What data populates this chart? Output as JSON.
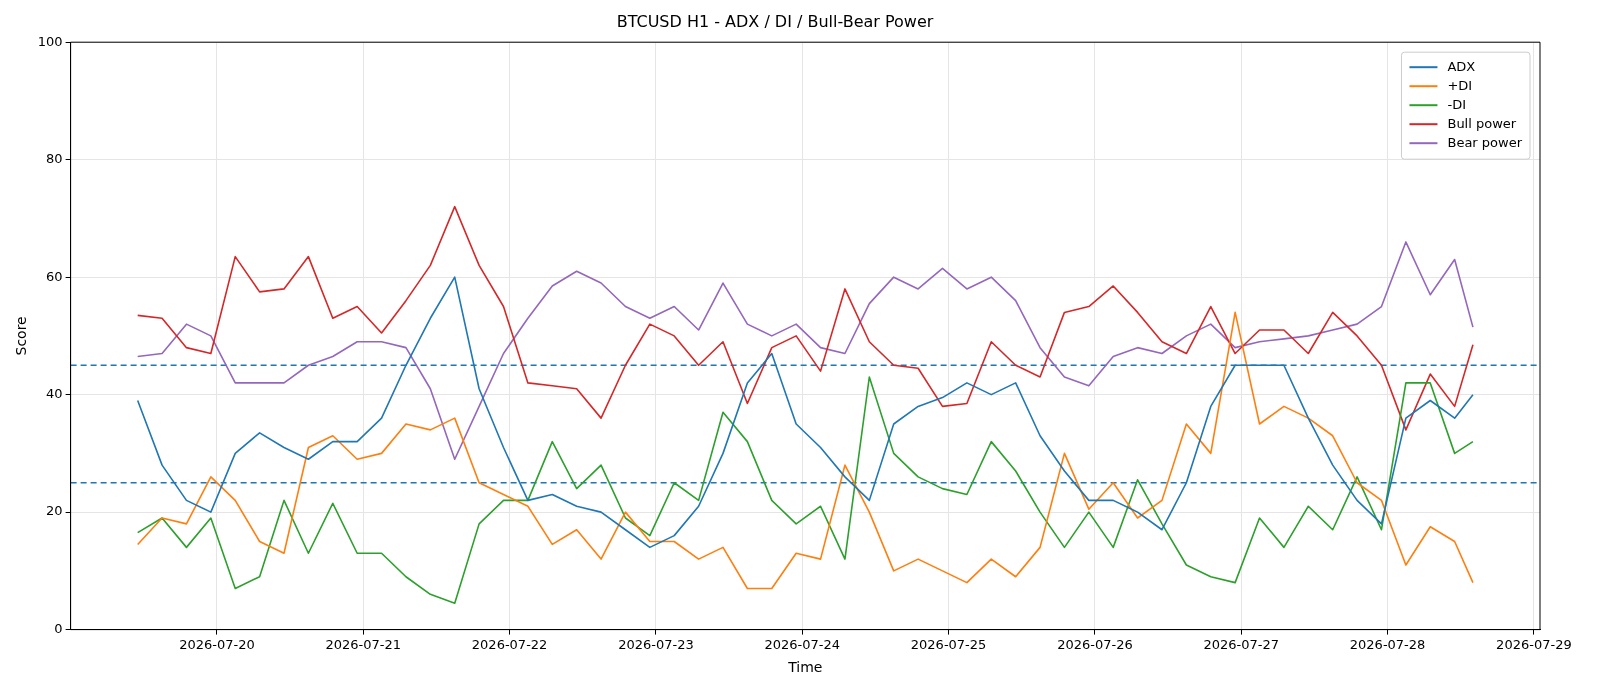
{
  "chart_data": {
    "type": "line",
    "title": "BTCUSD H1 - ADX / DI / Bull-Bear Power",
    "xlabel": "Time",
    "ylabel": "Score",
    "x": [
      "2026-07-19T11:00",
      "2026-07-19T15:00",
      "2026-07-19T19:00",
      "2026-07-19T23:00",
      "2026-07-20T03:00",
      "2026-07-20T07:00",
      "2026-07-20T11:00",
      "2026-07-20T15:00",
      "2026-07-20T19:00",
      "2026-07-20T23:00",
      "2026-07-21T03:00",
      "2026-07-21T07:00",
      "2026-07-21T11:00",
      "2026-07-21T15:00",
      "2026-07-21T19:00",
      "2026-07-21T23:00",
      "2026-07-22T03:00",
      "2026-07-22T07:00",
      "2026-07-22T11:00",
      "2026-07-22T15:00",
      "2026-07-22T19:00",
      "2026-07-22T23:00",
      "2026-07-23T03:00",
      "2026-07-23T07:00",
      "2026-07-23T11:00",
      "2026-07-23T15:00",
      "2026-07-23T19:00",
      "2026-07-23T23:00",
      "2026-07-24T03:00",
      "2026-07-24T07:00",
      "2026-07-24T11:00",
      "2026-07-24T15:00",
      "2026-07-24T19:00",
      "2026-07-24T23:00",
      "2026-07-25T03:00",
      "2026-07-25T07:00",
      "2026-07-25T11:00",
      "2026-07-25T15:00",
      "2026-07-25T19:00",
      "2026-07-25T23:00",
      "2026-07-26T03:00",
      "2026-07-26T07:00",
      "2026-07-26T11:00",
      "2026-07-26T15:00",
      "2026-07-26T19:00",
      "2026-07-26T23:00",
      "2026-07-27T03:00",
      "2026-07-27T07:00",
      "2026-07-27T11:00",
      "2026-07-27T15:00",
      "2026-07-27T19:00",
      "2026-07-27T23:00",
      "2026-07-28T03:00",
      "2026-07-28T07:00",
      "2026-07-28T11:00",
      "2026-07-28T14:00"
    ],
    "series": [
      {
        "name": "ADX",
        "color": "#1f77b4",
        "values": [
          39,
          28,
          22,
          20,
          30,
          33.5,
          31,
          29,
          32,
          32,
          36,
          45,
          53,
          60,
          41,
          31,
          22,
          23,
          21,
          20,
          17,
          14,
          16,
          21,
          30,
          42,
          47,
          35,
          31,
          26,
          22,
          35,
          38,
          39.5,
          42,
          40,
          42,
          33,
          27,
          22,
          22,
          20,
          17,
          25,
          38,
          45,
          45,
          45,
          36,
          28,
          22,
          18,
          36,
          39,
          36,
          40
        ]
      },
      {
        "name": "+DI",
        "color": "#ff7f0e",
        "values": [
          14.5,
          19,
          18,
          26,
          22,
          15,
          13,
          31,
          33,
          29,
          30,
          35,
          34,
          36,
          25,
          23,
          21,
          14.5,
          17,
          12,
          20,
          15,
          15,
          12,
          14,
          7,
          7,
          13,
          12,
          28,
          20,
          10,
          12,
          10,
          8,
          12,
          9,
          14,
          30,
          20.5,
          25,
          19,
          22,
          35,
          30,
          54,
          35,
          38,
          36,
          33,
          25,
          22,
          11,
          17.5,
          15,
          8
        ]
      },
      {
        "name": "-DI",
        "color": "#2ca02c",
        "values": [
          16.5,
          19,
          14,
          19,
          7,
          9,
          22,
          13,
          21.5,
          13,
          13,
          9,
          6,
          4.5,
          18,
          22,
          22,
          32,
          24,
          28,
          19,
          16,
          25,
          22,
          37,
          32,
          22,
          18,
          21,
          12,
          43,
          30,
          26,
          24,
          23,
          32,
          27,
          20,
          14,
          20,
          14,
          25.5,
          18,
          11,
          9,
          8,
          19,
          14,
          21,
          17,
          26,
          17,
          42,
          42,
          30,
          32
        ]
      },
      {
        "name": "Bull power",
        "color": "#d62728",
        "values": [
          53.5,
          53,
          48,
          47,
          63.5,
          57.5,
          58,
          63.5,
          53,
          55,
          50.5,
          56,
          62,
          72,
          62,
          55,
          42,
          41.5,
          41,
          36,
          45,
          52,
          50,
          45,
          49,
          38.5,
          48,
          50,
          44,
          58,
          49,
          45,
          44.5,
          38,
          38.5,
          49,
          45,
          43,
          54,
          55,
          58.5,
          54,
          49,
          47,
          55,
          47,
          51,
          51,
          47,
          54,
          50,
          45,
          34,
          43.5,
          38,
          48.5
        ]
      },
      {
        "name": "Bear power",
        "color": "#9467bd",
        "values": [
          46.5,
          47,
          52,
          50,
          42,
          42,
          42,
          45,
          46.5,
          49,
          49,
          48,
          41,
          29,
          38,
          47,
          53,
          58.5,
          61,
          59,
          55,
          53,
          55,
          51,
          59,
          52,
          50,
          52,
          48,
          47,
          55.5,
          60,
          58,
          61.5,
          58,
          60,
          56,
          48,
          43,
          41.5,
          46.5,
          48,
          47,
          50,
          52,
          48,
          49,
          49.5,
          50,
          51,
          52,
          55,
          66,
          57,
          63,
          51.5
        ]
      }
    ],
    "xlim": [
      "2026-07-19T00:00",
      "2026-07-29T01:00"
    ],
    "xticks": [
      "2026-07-20",
      "2026-07-21",
      "2026-07-22",
      "2026-07-23",
      "2026-07-24",
      "2026-07-25",
      "2026-07-26",
      "2026-07-27",
      "2026-07-28",
      "2026-07-29"
    ],
    "ylim": [
      0,
      100
    ],
    "yticks": [
      0,
      20,
      40,
      60,
      80,
      100
    ],
    "ref_lines": [
      {
        "axis": "y",
        "value": 45,
        "color": "#1f77b4",
        "line_style": "dashed"
      },
      {
        "axis": "y",
        "value": 25,
        "color": "#1f77b4",
        "line_style": "dashed"
      }
    ],
    "grid": true,
    "legend": "top right",
    "line_style": "solid",
    "marker": "none"
  }
}
